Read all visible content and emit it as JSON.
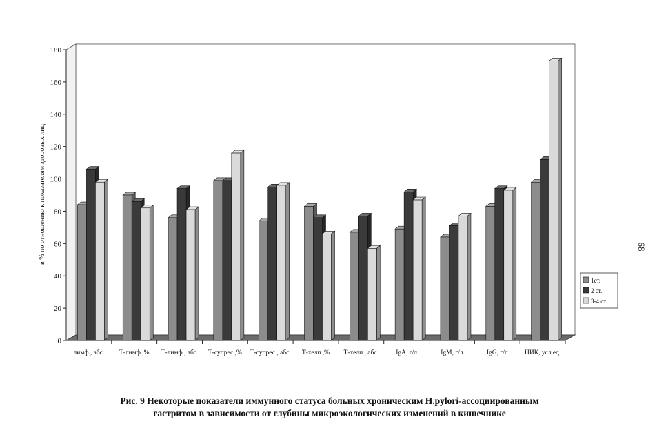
{
  "chart_data": {
    "type": "bar",
    "ylabel": "в % по отношению к показателям здоровых лиц",
    "ylim": [
      0,
      180
    ],
    "yticks": [
      0,
      20,
      40,
      60,
      80,
      100,
      120,
      140,
      160,
      180
    ],
    "grid": true,
    "legend_position": "right",
    "categories": [
      "лимф., абс.",
      "Т-лимф.,%",
      "Т-лимф., абс.",
      "Т-супрес.,%",
      "Т-супрес., абс.",
      "Т-хелп.,%",
      "Т-хелп., абс.",
      "IgA, г/л",
      "IgM, г/л",
      "IgG, г/л",
      "ЦИК, усл.ед."
    ],
    "series": [
      {
        "name": "1ст.",
        "color": "#8c8c8c",
        "values": [
          84,
          90,
          76,
          99,
          74,
          83,
          67,
          69,
          64,
          83,
          98
        ]
      },
      {
        "name": "2 ст.",
        "color": "#3a3a3a",
        "values": [
          106,
          86,
          94,
          99,
          95,
          76,
          77,
          92,
          71,
          94,
          112
        ]
      },
      {
        "name": "3-4 ст.",
        "color": "#dadada",
        "values": [
          98,
          82,
          81,
          116,
          96,
          66,
          57,
          87,
          77,
          93,
          173
        ]
      }
    ]
  },
  "caption": {
    "line1": "Рис. 9 Некоторые показатели иммунного статуса больных хроническим H.pylori-ассоциированным",
    "line2": "гастритом в зависимости от глубины микроэкологических изменений в кишечнике"
  },
  "page_number": "68"
}
